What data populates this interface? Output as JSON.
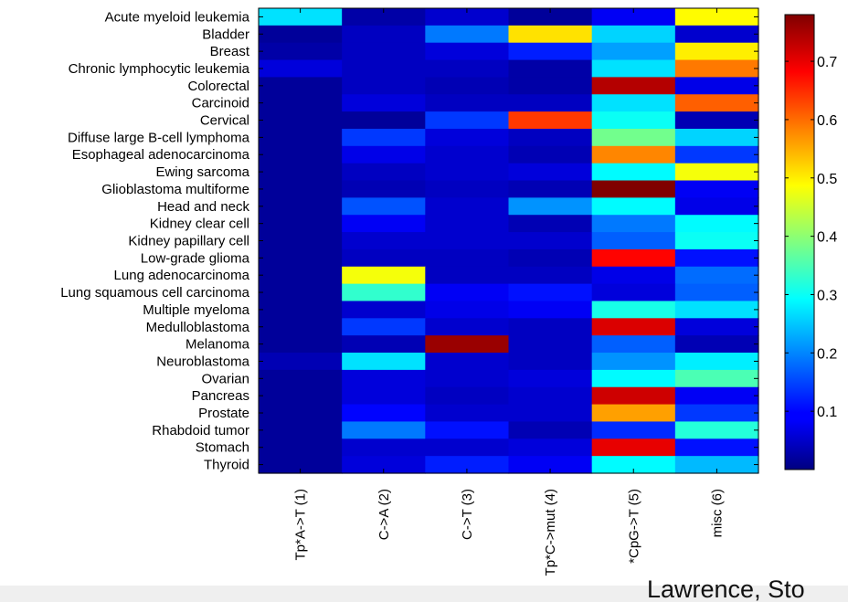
{
  "chart_data": {
    "type": "heatmap",
    "title": "",
    "xlabel": "",
    "ylabel": "",
    "rows": [
      "Acute myeloid leukemia",
      "Bladder",
      "Breast",
      "Chronic lymphocytic leukemia",
      "Colorectal",
      "Carcinoid",
      "Cervical",
      "Diffuse large B-cell lymphoma",
      "Esophageal adenocarcinoma",
      "Ewing sarcoma",
      "Glioblastoma multiforme",
      "Head and neck",
      "Kidney clear cell",
      "Kidney papillary cell",
      "Low-grade glioma",
      "Lung adenocarcinoma",
      "Lung squamous cell carcinoma",
      "Multiple myeloma",
      "Medulloblastoma",
      "Melanoma",
      "Neuroblastoma",
      "Ovarian",
      "Pancreas",
      "Prostate",
      "Rhabdoid tumor",
      "Stomach",
      "Thyroid"
    ],
    "columns": [
      "Tp*A->T (1)",
      "C->A (2)",
      "C->T (3)",
      "Tp*C->mut (4)",
      "*CpG->T (5)",
      "misc (6)"
    ],
    "values": [
      [
        0.27,
        0.03,
        0.06,
        0.02,
        0.09,
        0.49
      ],
      [
        0.02,
        0.05,
        0.19,
        0.51,
        0.26,
        0.06
      ],
      [
        0.03,
        0.05,
        0.07,
        0.12,
        0.22,
        0.5
      ],
      [
        0.07,
        0.05,
        0.05,
        0.03,
        0.27,
        0.59
      ],
      [
        0.02,
        0.05,
        0.04,
        0.03,
        0.74,
        0.08
      ],
      [
        0.02,
        0.07,
        0.05,
        0.05,
        0.27,
        0.61
      ],
      [
        0.02,
        0.02,
        0.14,
        0.64,
        0.3,
        0.04
      ],
      [
        0.02,
        0.14,
        0.07,
        0.05,
        0.38,
        0.26
      ],
      [
        0.02,
        0.08,
        0.06,
        0.04,
        0.58,
        0.14
      ],
      [
        0.02,
        0.05,
        0.06,
        0.07,
        0.29,
        0.48
      ],
      [
        0.02,
        0.04,
        0.05,
        0.04,
        0.78,
        0.09
      ],
      [
        0.02,
        0.16,
        0.06,
        0.21,
        0.29,
        0.08
      ],
      [
        0.02,
        0.09,
        0.06,
        0.04,
        0.19,
        0.29
      ],
      [
        0.02,
        0.06,
        0.06,
        0.06,
        0.17,
        0.3
      ],
      [
        0.02,
        0.05,
        0.05,
        0.04,
        0.68,
        0.11
      ],
      [
        0.02,
        0.48,
        0.05,
        0.05,
        0.08,
        0.18
      ],
      [
        0.02,
        0.33,
        0.09,
        0.11,
        0.07,
        0.17
      ],
      [
        0.02,
        0.06,
        0.08,
        0.09,
        0.31,
        0.27
      ],
      [
        0.02,
        0.14,
        0.06,
        0.05,
        0.71,
        0.07
      ],
      [
        0.02,
        0.04,
        0.76,
        0.05,
        0.17,
        0.04
      ],
      [
        0.04,
        0.27,
        0.06,
        0.05,
        0.21,
        0.28
      ],
      [
        0.02,
        0.07,
        0.06,
        0.07,
        0.29,
        0.35
      ],
      [
        0.02,
        0.07,
        0.05,
        0.06,
        0.72,
        0.09
      ],
      [
        0.02,
        0.1,
        0.06,
        0.06,
        0.56,
        0.14
      ],
      [
        0.02,
        0.19,
        0.11,
        0.04,
        0.13,
        0.32
      ],
      [
        0.02,
        0.06,
        0.06,
        0.07,
        0.7,
        0.11
      ],
      [
        0.02,
        0.07,
        0.12,
        0.09,
        0.29,
        0.24
      ]
    ],
    "colorbar": {
      "colormap": "jet",
      "min": 0.0,
      "max": 0.78,
      "ticks": [
        0.1,
        0.2,
        0.3,
        0.4,
        0.5,
        0.6,
        0.7
      ],
      "tick_labels": [
        "0.1",
        "0.2",
        "0.3",
        "0.4",
        "0.5",
        "0.6",
        "0.7"
      ]
    },
    "grid": false
  },
  "footer": {
    "credit": "Lawrence, Sto"
  }
}
